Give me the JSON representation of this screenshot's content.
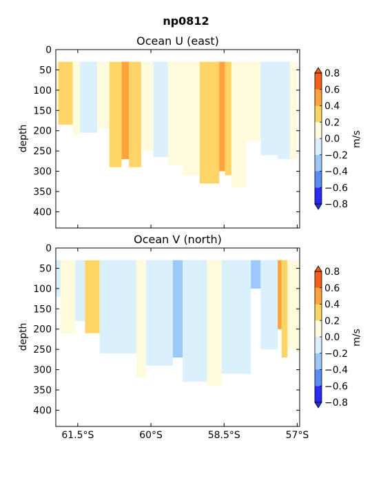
{
  "figure": {
    "title": "np0812"
  },
  "colorbar": {
    "label": "m/s",
    "levels": [
      -0.8,
      -0.6,
      -0.4,
      -0.2,
      0.0,
      0.2,
      0.4,
      0.6,
      0.8
    ],
    "tick_labels": [
      "−0.8",
      "−0.6",
      "−0.4",
      "−0.2",
      "0.0",
      "0.2",
      "0.4",
      "0.6",
      "0.8"
    ],
    "colors": [
      "#2b2bee",
      "#5a8cf2",
      "#9cc8fa",
      "#daf0fc",
      "#fffbdc",
      "#ffd466",
      "#ffa23c",
      "#f25f1c"
    ],
    "extend": "both"
  },
  "chart_data": [
    {
      "type": "heatmap",
      "subtype": "filled-contour",
      "title": "Ocean U (east)",
      "ylabel": "depth",
      "xlabel": "",
      "yticks": [
        0,
        50,
        100,
        150,
        200,
        250,
        300,
        350,
        400
      ],
      "ylim": [
        440,
        0
      ],
      "xtick_labels": [
        "61.5°S",
        "60°S",
        "58.5°S",
        "57°S"
      ],
      "xticks": [
        -61.5,
        -60,
        -58.5,
        -57
      ],
      "xlim": [
        -61.95,
        -56.95
      ],
      "colorbar_label": "m/s",
      "data_top_depth": 30,
      "bands": [
        {
          "x0": -61.95,
          "x1": -61.9,
          "value": 0.1,
          "maxdepth": 140
        },
        {
          "x0": -61.9,
          "x1": -61.6,
          "value": 0.3,
          "maxdepth": 185
        },
        {
          "x0": -61.6,
          "x1": -61.45,
          "value": 0.1,
          "maxdepth": 210
        },
        {
          "x0": -61.45,
          "x1": -61.1,
          "value": -0.1,
          "maxdepth": 205
        },
        {
          "x0": -61.1,
          "x1": -60.85,
          "value": 0.1,
          "maxdepth": 195
        },
        {
          "x0": -60.85,
          "x1": -60.6,
          "value": 0.3,
          "maxdepth": 290
        },
        {
          "x0": -60.6,
          "x1": -60.45,
          "value": 0.5,
          "maxdepth": 270
        },
        {
          "x0": -60.45,
          "x1": -60.2,
          "value": 0.3,
          "maxdepth": 290
        },
        {
          "x0": -60.2,
          "x1": -59.95,
          "value": 0.1,
          "maxdepth": 250
        },
        {
          "x0": -59.95,
          "x1": -59.65,
          "value": -0.1,
          "maxdepth": 265
        },
        {
          "x0": -59.65,
          "x1": -59.35,
          "value": 0.1,
          "maxdepth": 285
        },
        {
          "x0": -59.35,
          "x1": -59.0,
          "value": 0.1,
          "maxdepth": 310
        },
        {
          "x0": -59.0,
          "x1": -58.6,
          "value": 0.3,
          "maxdepth": 330
        },
        {
          "x0": -58.6,
          "x1": -58.48,
          "value": 0.5,
          "maxdepth": 300
        },
        {
          "x0": -58.48,
          "x1": -58.35,
          "value": 0.3,
          "maxdepth": 310
        },
        {
          "x0": -58.35,
          "x1": -58.05,
          "value": 0.1,
          "maxdepth": 340
        },
        {
          "x0": -58.05,
          "x1": -57.75,
          "value": 0.1,
          "maxdepth": 225
        },
        {
          "x0": -57.75,
          "x1": -57.4,
          "value": -0.1,
          "maxdepth": 260
        },
        {
          "x0": -57.4,
          "x1": -57.15,
          "value": -0.1,
          "maxdepth": 270
        },
        {
          "x0": -57.15,
          "x1": -57.0,
          "value": 0.1,
          "maxdepth": 270
        }
      ]
    },
    {
      "type": "heatmap",
      "subtype": "filled-contour",
      "title": "Ocean V (north)",
      "ylabel": "depth",
      "xlabel": "",
      "yticks": [
        0,
        50,
        100,
        150,
        200,
        250,
        300,
        350,
        400
      ],
      "ylim": [
        440,
        0
      ],
      "xtick_labels": [
        "61.5°S",
        "60°S",
        "58.5°S",
        "57°S"
      ],
      "xticks": [
        -61.5,
        -60,
        -58.5,
        -57
      ],
      "xlim": [
        -61.95,
        -56.95
      ],
      "colorbar_label": "m/s",
      "data_top_depth": 30,
      "bands": [
        {
          "x0": -61.95,
          "x1": -61.85,
          "value": -0.1,
          "maxdepth": 120
        },
        {
          "x0": -61.85,
          "x1": -61.55,
          "value": 0.1,
          "maxdepth": 210
        },
        {
          "x0": -61.55,
          "x1": -61.35,
          "value": -0.1,
          "maxdepth": 180
        },
        {
          "x0": -61.35,
          "x1": -61.05,
          "value": 0.3,
          "maxdepth": 210
        },
        {
          "x0": -61.05,
          "x1": -60.3,
          "value": -0.1,
          "maxdepth": 260
        },
        {
          "x0": -60.3,
          "x1": -60.1,
          "value": 0.1,
          "maxdepth": 320
        },
        {
          "x0": -60.1,
          "x1": -59.55,
          "value": -0.1,
          "maxdepth": 290
        },
        {
          "x0": -59.55,
          "x1": -59.35,
          "value": -0.3,
          "maxdepth": 270
        },
        {
          "x0": -59.35,
          "x1": -58.85,
          "value": -0.1,
          "maxdepth": 330
        },
        {
          "x0": -58.85,
          "x1": -58.55,
          "value": 0.1,
          "maxdepth": 340
        },
        {
          "x0": -58.55,
          "x1": -57.95,
          "value": -0.1,
          "maxdepth": 310
        },
        {
          "x0": -57.95,
          "x1": -57.75,
          "value": -0.3,
          "maxdepth": 100
        },
        {
          "x0": -57.75,
          "x1": -57.4,
          "value": -0.1,
          "maxdepth": 250
        },
        {
          "x0": -57.4,
          "x1": -57.32,
          "value": 0.5,
          "maxdepth": 200
        },
        {
          "x0": -57.32,
          "x1": -57.2,
          "value": 0.3,
          "maxdepth": 270
        },
        {
          "x0": -57.2,
          "x1": -56.95,
          "value": 0.1,
          "maxdepth": 250
        }
      ]
    }
  ]
}
